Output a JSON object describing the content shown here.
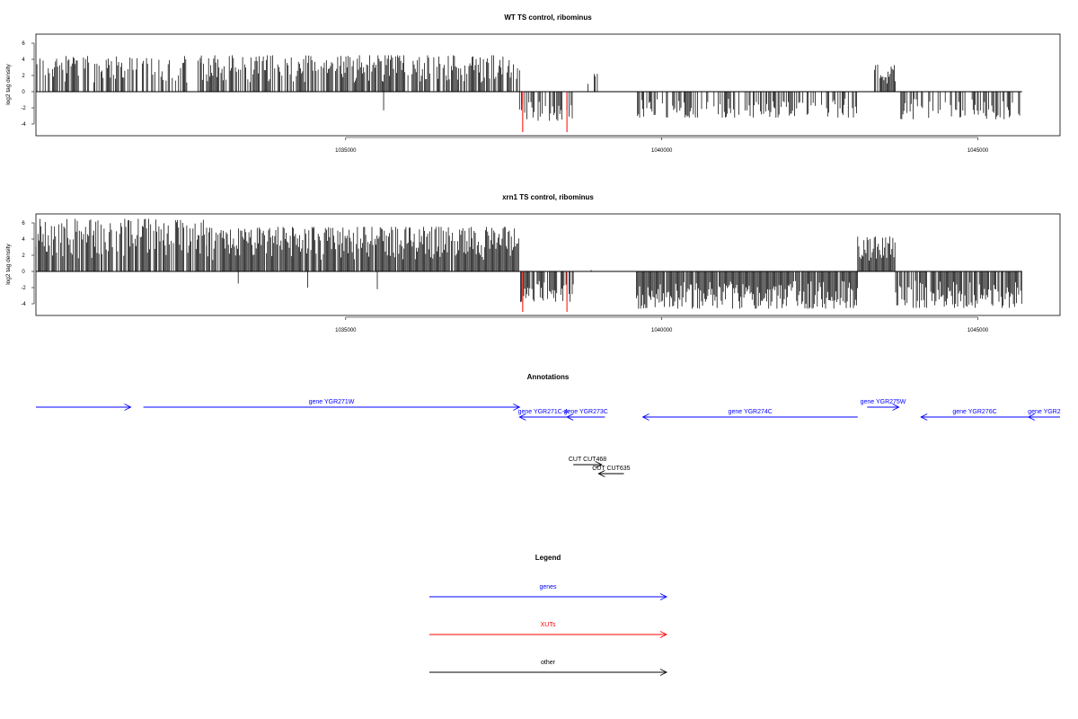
{
  "chart_data": [
    {
      "type": "bar",
      "title": "WT TS control, ribominus",
      "ylabel": "log2 tag density",
      "xlim": [
        1030100,
        1046300
      ],
      "ylim": [
        -5.5,
        7
      ],
      "yticks": [
        -4,
        -2,
        0,
        2,
        4,
        6
      ],
      "xticks": [
        1035000,
        1040000,
        1045000
      ],
      "segments": [
        {
          "x0": 1030100,
          "x1": 1032700,
          "max": 4.4,
          "density": 0.55,
          "sign": 1
        },
        {
          "x0": 1032700,
          "x1": 1037750,
          "max": 4.5,
          "density": 0.75,
          "sign": 1
        },
        {
          "x0": 1037750,
          "x1": 1038600,
          "max": -3.6,
          "density": 0.6,
          "sign": -1
        },
        {
          "x0": 1038800,
          "x1": 1039000,
          "max": 2.2,
          "density": 0.2,
          "sign": 1
        },
        {
          "x0": 1039600,
          "x1": 1043100,
          "max": -3.2,
          "density": 0.5,
          "sign": -1
        },
        {
          "x0": 1043350,
          "x1": 1043700,
          "max": 3.4,
          "density": 0.9,
          "sign": 1
        },
        {
          "x0": 1043700,
          "x1": 1045700,
          "max": -3.4,
          "density": 0.5,
          "sign": -1
        }
      ],
      "outliers": [
        {
          "x": 1035600,
          "y": -2.3
        }
      ],
      "red_lines": [
        {
          "x": 1037800,
          "y": -5
        },
        {
          "x": 1038500,
          "y": -5
        }
      ]
    },
    {
      "type": "bar",
      "title": "xrn1 TS control, ribominus",
      "ylabel": "log2 tag density",
      "xlim": [
        1030100,
        1046300
      ],
      "ylim": [
        -5.5,
        7
      ],
      "yticks": [
        -4,
        -2,
        0,
        2,
        4,
        6
      ],
      "xticks": [
        1035000,
        1040000,
        1045000
      ],
      "segments": [
        {
          "x0": 1030100,
          "x1": 1032800,
          "max": 6.5,
          "density": 0.85,
          "sign": 1
        },
        {
          "x0": 1032800,
          "x1": 1037750,
          "max": 5.5,
          "density": 0.95,
          "sign": 1
        },
        {
          "x0": 1037750,
          "x1": 1038600,
          "max": -3.8,
          "density": 0.7,
          "sign": -1
        },
        {
          "x0": 1038850,
          "x1": 1038900,
          "max": 0.5,
          "density": 0.5,
          "sign": 1
        },
        {
          "x0": 1039600,
          "x1": 1043100,
          "max": -4.6,
          "density": 0.95,
          "sign": -1
        },
        {
          "x0": 1043100,
          "x1": 1043700,
          "max": 4.3,
          "density": 0.95,
          "sign": 1
        },
        {
          "x0": 1043700,
          "x1": 1045700,
          "max": -4.5,
          "density": 0.85,
          "sign": -1
        }
      ],
      "outliers": [
        {
          "x": 1033300,
          "y": -1.5
        },
        {
          "x": 1034400,
          "y": -2
        },
        {
          "x": 1035500,
          "y": -2.2
        }
      ],
      "red_lines": [
        {
          "x": 1037800,
          "y": -5
        },
        {
          "x": 1038500,
          "y": -5
        }
      ]
    }
  ],
  "annotations": {
    "title": "Annotations",
    "items": [
      {
        "label": "",
        "x0": 1030100,
        "x1": 1031600,
        "dir": 1,
        "color": "#0000ff",
        "row": 1
      },
      {
        "label": "gene YGR271W",
        "x0": 1031800,
        "x1": 1037750,
        "dir": 1,
        "color": "#0000ff",
        "row": 1
      },
      {
        "label": "gene YGR271C-A",
        "x0": 1037750,
        "x1": 1038500,
        "dir": -1,
        "color": "#0000ff",
        "row": 2
      },
      {
        "label": "gene YGR273C",
        "x0": 1038500,
        "x1": 1039100,
        "dir": -1,
        "color": "#0000ff",
        "row": 2
      },
      {
        "label": "gene YGR274C",
        "x0": 1039700,
        "x1": 1043100,
        "dir": -1,
        "color": "#0000ff",
        "row": 2
      },
      {
        "label": "gene YGR275W",
        "x0": 1043250,
        "x1": 1043750,
        "dir": 1,
        "color": "#0000ff",
        "row": 1
      },
      {
        "label": "gene YGR276C",
        "x0": 1044100,
        "x1": 1045800,
        "dir": -1,
        "color": "#0000ff",
        "row": 2
      },
      {
        "label": "gene YGR2",
        "x0": 1045800,
        "x1": 1046300,
        "dir": -1,
        "color": "#0000ff",
        "row": 2
      },
      {
        "label": "CUT CUT468",
        "x0": 1038600,
        "x1": 1039050,
        "dir": 1,
        "color": "#000000",
        "row": 3
      },
      {
        "label": "CUT CUT635",
        "x0": 1039000,
        "x1": 1039400,
        "dir": -1,
        "color": "#000000",
        "row": 4
      }
    ]
  },
  "legend": {
    "title": "Legend",
    "items": [
      {
        "label": "genes",
        "color": "#0000ff"
      },
      {
        "label": "XUTs",
        "color": "#ff0000"
      },
      {
        "label": "other",
        "color": "#000000"
      }
    ]
  }
}
